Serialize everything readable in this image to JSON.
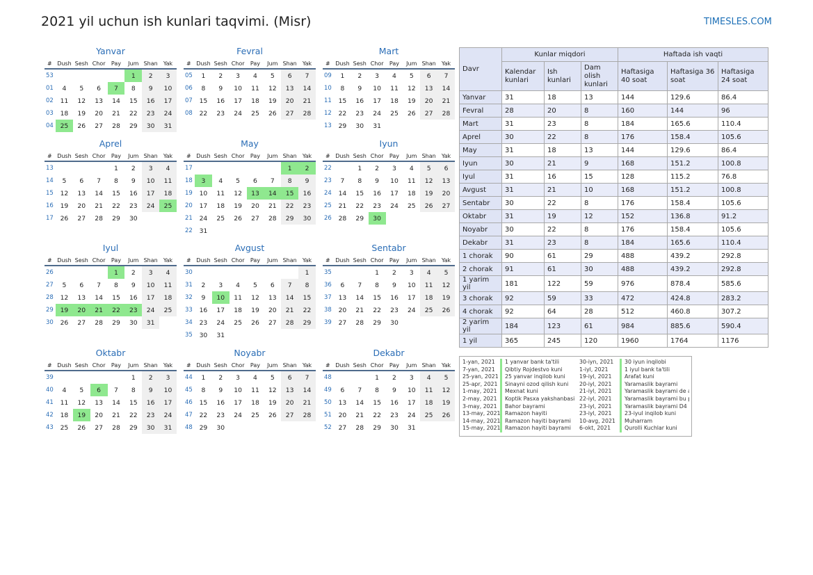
{
  "title": "2021 yil uchun ish kunlari taqvimi. (Misr)",
  "site": "TIMESLES.COM",
  "colors": {
    "accent": "#1e70b7",
    "weekend": "#efefef",
    "holiday": "#8fe88f",
    "header": "#dfe4f5"
  },
  "weekday_headers": [
    "#",
    "Dush",
    "Sesh",
    "Chor",
    "Pay",
    "Jum",
    "Shan",
    "Yak"
  ],
  "months": [
    {
      "name": "Yanvar",
      "rows": [
        {
          "wk": "53",
          "days": [
            "",
            "",
            "",
            "",
            "1",
            "2",
            "3"
          ]
        },
        {
          "wk": "01",
          "days": [
            "4",
            "5",
            "6",
            "7",
            "8",
            "9",
            "10"
          ]
        },
        {
          "wk": "02",
          "days": [
            "11",
            "12",
            "13",
            "14",
            "15",
            "16",
            "17"
          ]
        },
        {
          "wk": "03",
          "days": [
            "18",
            "19",
            "20",
            "21",
            "22",
            "23",
            "24"
          ]
        },
        {
          "wk": "04",
          "days": [
            "25",
            "26",
            "27",
            "28",
            "29",
            "30",
            "31"
          ]
        }
      ],
      "holidays": [
        "1",
        "7",
        "25"
      ]
    },
    {
      "name": "Fevral",
      "rows": [
        {
          "wk": "05",
          "days": [
            "1",
            "2",
            "3",
            "4",
            "5",
            "6",
            "7"
          ]
        },
        {
          "wk": "06",
          "days": [
            "8",
            "9",
            "10",
            "11",
            "12",
            "13",
            "14"
          ]
        },
        {
          "wk": "07",
          "days": [
            "15",
            "16",
            "17",
            "18",
            "19",
            "20",
            "21"
          ]
        },
        {
          "wk": "08",
          "days": [
            "22",
            "23",
            "24",
            "25",
            "26",
            "27",
            "28"
          ]
        }
      ],
      "holidays": []
    },
    {
      "name": "Mart",
      "rows": [
        {
          "wk": "09",
          "days": [
            "1",
            "2",
            "3",
            "4",
            "5",
            "6",
            "7"
          ]
        },
        {
          "wk": "10",
          "days": [
            "8",
            "9",
            "10",
            "11",
            "12",
            "13",
            "14"
          ]
        },
        {
          "wk": "11",
          "days": [
            "15",
            "16",
            "17",
            "18",
            "19",
            "20",
            "21"
          ]
        },
        {
          "wk": "12",
          "days": [
            "22",
            "23",
            "24",
            "25",
            "26",
            "27",
            "28"
          ]
        },
        {
          "wk": "13",
          "days": [
            "29",
            "30",
            "31",
            "",
            "",
            "",
            ""
          ]
        }
      ],
      "holidays": []
    },
    {
      "name": "Aprel",
      "rows": [
        {
          "wk": "13",
          "days": [
            "",
            "",
            "",
            "1",
            "2",
            "3",
            "4"
          ]
        },
        {
          "wk": "14",
          "days": [
            "5",
            "6",
            "7",
            "8",
            "9",
            "10",
            "11"
          ]
        },
        {
          "wk": "15",
          "days": [
            "12",
            "13",
            "14",
            "15",
            "16",
            "17",
            "18"
          ]
        },
        {
          "wk": "16",
          "days": [
            "19",
            "20",
            "21",
            "22",
            "23",
            "24",
            "25"
          ]
        },
        {
          "wk": "17",
          "days": [
            "26",
            "27",
            "28",
            "29",
            "30",
            "",
            ""
          ]
        }
      ],
      "holidays": [
        "25"
      ]
    },
    {
      "name": "May",
      "rows": [
        {
          "wk": "17",
          "days": [
            "",
            "",
            "",
            "",
            "",
            "1",
            "2"
          ]
        },
        {
          "wk": "18",
          "days": [
            "3",
            "4",
            "5",
            "6",
            "7",
            "8",
            "9"
          ]
        },
        {
          "wk": "19",
          "days": [
            "10",
            "11",
            "12",
            "13",
            "14",
            "15",
            "16"
          ]
        },
        {
          "wk": "20",
          "days": [
            "17",
            "18",
            "19",
            "20",
            "21",
            "22",
            "23"
          ]
        },
        {
          "wk": "21",
          "days": [
            "24",
            "25",
            "26",
            "27",
            "28",
            "29",
            "30"
          ]
        },
        {
          "wk": "22",
          "days": [
            "31",
            "",
            "",
            "",
            "",
            "",
            ""
          ]
        }
      ],
      "holidays": [
        "1",
        "2",
        "3",
        "13",
        "14",
        "15"
      ]
    },
    {
      "name": "Iyun",
      "rows": [
        {
          "wk": "22",
          "days": [
            "",
            "1",
            "2",
            "3",
            "4",
            "5",
            "6"
          ]
        },
        {
          "wk": "23",
          "days": [
            "7",
            "8",
            "9",
            "10",
            "11",
            "12",
            "13"
          ]
        },
        {
          "wk": "24",
          "days": [
            "14",
            "15",
            "16",
            "17",
            "18",
            "19",
            "20"
          ]
        },
        {
          "wk": "25",
          "days": [
            "21",
            "22",
            "23",
            "24",
            "25",
            "26",
            "27"
          ]
        },
        {
          "wk": "26",
          "days": [
            "28",
            "29",
            "30",
            "",
            "",
            "",
            ""
          ]
        }
      ],
      "holidays": [
        "30"
      ]
    },
    {
      "name": "Iyul",
      "rows": [
        {
          "wk": "26",
          "days": [
            "",
            "",
            "",
            "1",
            "2",
            "3",
            "4"
          ]
        },
        {
          "wk": "27",
          "days": [
            "5",
            "6",
            "7",
            "8",
            "9",
            "10",
            "11"
          ]
        },
        {
          "wk": "28",
          "days": [
            "12",
            "13",
            "14",
            "15",
            "16",
            "17",
            "18"
          ]
        },
        {
          "wk": "29",
          "days": [
            "19",
            "20",
            "21",
            "22",
            "23",
            "24",
            "25"
          ]
        },
        {
          "wk": "30",
          "days": [
            "26",
            "27",
            "28",
            "29",
            "30",
            "31",
            ""
          ]
        }
      ],
      "holidays": [
        "1",
        "19",
        "20",
        "21",
        "22",
        "23"
      ]
    },
    {
      "name": "Avgust",
      "rows": [
        {
          "wk": "30",
          "days": [
            "",
            "",
            "",
            "",
            "",
            "",
            "1"
          ]
        },
        {
          "wk": "31",
          "days": [
            "2",
            "3",
            "4",
            "5",
            "6",
            "7",
            "8"
          ]
        },
        {
          "wk": "32",
          "days": [
            "9",
            "10",
            "11",
            "12",
            "13",
            "14",
            "15"
          ]
        },
        {
          "wk": "33",
          "days": [
            "16",
            "17",
            "18",
            "19",
            "20",
            "21",
            "22"
          ]
        },
        {
          "wk": "34",
          "days": [
            "23",
            "24",
            "25",
            "26",
            "27",
            "28",
            "29"
          ]
        },
        {
          "wk": "35",
          "days": [
            "30",
            "31",
            "",
            "",
            "",
            "",
            ""
          ]
        }
      ],
      "holidays": [
        "10"
      ]
    },
    {
      "name": "Sentabr",
      "rows": [
        {
          "wk": "35",
          "days": [
            "",
            "",
            "1",
            "2",
            "3",
            "4",
            "5"
          ]
        },
        {
          "wk": "36",
          "days": [
            "6",
            "7",
            "8",
            "9",
            "10",
            "11",
            "12"
          ]
        },
        {
          "wk": "37",
          "days": [
            "13",
            "14",
            "15",
            "16",
            "17",
            "18",
            "19"
          ]
        },
        {
          "wk": "38",
          "days": [
            "20",
            "21",
            "22",
            "23",
            "24",
            "25",
            "26"
          ]
        },
        {
          "wk": "39",
          "days": [
            "27",
            "28",
            "29",
            "30",
            "",
            "",
            ""
          ]
        }
      ],
      "holidays": []
    },
    {
      "name": "Oktabr",
      "rows": [
        {
          "wk": "39",
          "days": [
            "",
            "",
            "",
            "",
            "1",
            "2",
            "3"
          ]
        },
        {
          "wk": "40",
          "days": [
            "4",
            "5",
            "6",
            "7",
            "8",
            "9",
            "10"
          ]
        },
        {
          "wk": "41",
          "days": [
            "11",
            "12",
            "13",
            "14",
            "15",
            "16",
            "17"
          ]
        },
        {
          "wk": "42",
          "days": [
            "18",
            "19",
            "20",
            "21",
            "22",
            "23",
            "24"
          ]
        },
        {
          "wk": "43",
          "days": [
            "25",
            "26",
            "27",
            "28",
            "29",
            "30",
            "31"
          ]
        }
      ],
      "holidays": [
        "6",
        "19"
      ]
    },
    {
      "name": "Noyabr",
      "rows": [
        {
          "wk": "44",
          "days": [
            "1",
            "2",
            "3",
            "4",
            "5",
            "6",
            "7"
          ]
        },
        {
          "wk": "45",
          "days": [
            "8",
            "9",
            "10",
            "11",
            "12",
            "13",
            "14"
          ]
        },
        {
          "wk": "46",
          "days": [
            "15",
            "16",
            "17",
            "18",
            "19",
            "20",
            "21"
          ]
        },
        {
          "wk": "47",
          "days": [
            "22",
            "23",
            "24",
            "25",
            "26",
            "27",
            "28"
          ]
        },
        {
          "wk": "48",
          "days": [
            "29",
            "30",
            "",
            "",
            "",
            "",
            ""
          ]
        }
      ],
      "holidays": []
    },
    {
      "name": "Dekabr",
      "rows": [
        {
          "wk": "48",
          "days": [
            "",
            "",
            "1",
            "2",
            "3",
            "4",
            "5"
          ]
        },
        {
          "wk": "49",
          "days": [
            "6",
            "7",
            "8",
            "9",
            "10",
            "11",
            "12"
          ]
        },
        {
          "wk": "50",
          "days": [
            "13",
            "14",
            "15",
            "16",
            "17",
            "18",
            "19"
          ]
        },
        {
          "wk": "51",
          "days": [
            "20",
            "21",
            "22",
            "23",
            "24",
            "25",
            "26"
          ]
        },
        {
          "wk": "52",
          "days": [
            "27",
            "28",
            "29",
            "30",
            "31",
            "",
            ""
          ]
        }
      ],
      "holidays": []
    }
  ],
  "summary": {
    "davr_label": "Davr",
    "group1": "Kunlar miqdori",
    "group2": "Haftada ish vaqti",
    "subheaders": [
      "Kalendar kunlari",
      "Ish kunlari",
      "Dam olish kunlari",
      "Haftasiga 40 soat",
      "Haftasiga 36 soat",
      "Haftasiga 24 soat"
    ],
    "rows": [
      [
        "Yanvar",
        "31",
        "18",
        "13",
        "144",
        "129.6",
        "86.4"
      ],
      [
        "Fevral",
        "28",
        "20",
        "8",
        "160",
        "144",
        "96"
      ],
      [
        "Mart",
        "31",
        "23",
        "8",
        "184",
        "165.6",
        "110.4"
      ],
      [
        "Aprel",
        "30",
        "22",
        "8",
        "176",
        "158.4",
        "105.6"
      ],
      [
        "May",
        "31",
        "18",
        "13",
        "144",
        "129.6",
        "86.4"
      ],
      [
        "Iyun",
        "30",
        "21",
        "9",
        "168",
        "151.2",
        "100.8"
      ],
      [
        "Iyul",
        "31",
        "16",
        "15",
        "128",
        "115.2",
        "76.8"
      ],
      [
        "Avgust",
        "31",
        "21",
        "10",
        "168",
        "151.2",
        "100.8"
      ],
      [
        "Sentabr",
        "30",
        "22",
        "8",
        "176",
        "158.4",
        "105.6"
      ],
      [
        "Oktabr",
        "31",
        "19",
        "12",
        "152",
        "136.8",
        "91.2"
      ],
      [
        "Noyabr",
        "30",
        "22",
        "8",
        "176",
        "158.4",
        "105.6"
      ],
      [
        "Dekabr",
        "31",
        "23",
        "8",
        "184",
        "165.6",
        "110.4"
      ],
      [
        "1 chorak",
        "90",
        "61",
        "29",
        "488",
        "439.2",
        "292.8"
      ],
      [
        "2 chorak",
        "91",
        "61",
        "30",
        "488",
        "439.2",
        "292.8"
      ],
      [
        "1 yarim yil",
        "181",
        "122",
        "59",
        "976",
        "878.4",
        "585.6"
      ],
      [
        "3 chorak",
        "92",
        "59",
        "33",
        "472",
        "424.8",
        "283.2"
      ],
      [
        "4 chorak",
        "92",
        "64",
        "28",
        "512",
        "460.8",
        "307.2"
      ],
      [
        "2 yarim yil",
        "184",
        "123",
        "61",
        "984",
        "885.6",
        "590.4"
      ],
      [
        "1 yil",
        "365",
        "245",
        "120",
        "1960",
        "1764",
        "1176"
      ]
    ]
  },
  "holidays_list": [
    [
      "1-yan, 2021",
      "1 yanvar bank ta'tili",
      "30-iyn, 2021",
      "30 iyun inqilobi"
    ],
    [
      "7-yan, 2021",
      "Qibtiy Rojdestvo kuni",
      "1-iyl, 2021",
      "1 iyul bank ta'tili"
    ],
    [
      "25-yan, 2021",
      "25 yanvar inqilob kuni",
      "19-iyl, 2021",
      "Arafat kuni"
    ],
    [
      "25-apr, 2021",
      "Sinayni ozod qilish kuni",
      "20-iyl, 2021",
      "Yaramaslik bayrami"
    ],
    [
      "1-may, 2021",
      "Mexnat kuni",
      "21-iyl, 2021",
      "Yaramaslik bayrami de a"
    ],
    [
      "2-may, 2021",
      "Koptik Pasxa yakshanbasi",
      "22-iyl, 2021",
      "Yaramaslik bayrami bu p"
    ],
    [
      "3-may, 2021",
      "Bahor bayrami",
      "23-iyl, 2021",
      "Yaramaslik bayrami D4"
    ],
    [
      "13-may, 2021",
      "Ramazon hayiti",
      "23-iyl, 2021",
      "23-iyul inqilob kuni"
    ],
    [
      "14-may, 2021",
      "Ramazon hayiti bayrami",
      "10-avg, 2021",
      "Muharram"
    ],
    [
      "15-may, 2021",
      "Ramazon hayiti bayrami",
      "6-okt, 2021",
      "Qurolli Kuchlar kuni"
    ]
  ]
}
